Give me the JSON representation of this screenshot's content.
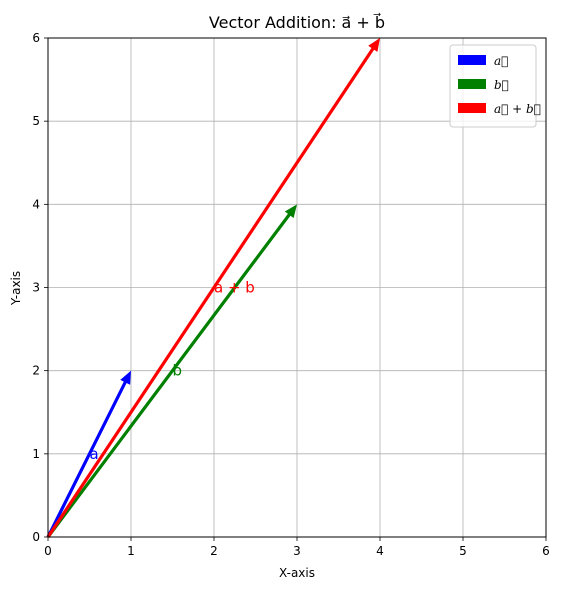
{
  "chart_data": {
    "type": "vector",
    "title": "Vector Addition: a⃗ + b⃗",
    "xlabel": "X-axis",
    "ylabel": "Y-axis",
    "xlim": [
      0,
      6
    ],
    "ylim": [
      0,
      6
    ],
    "xticks": [
      "0",
      "1",
      "2",
      "3",
      "4",
      "5",
      "6"
    ],
    "yticks": [
      "0",
      "1",
      "2",
      "3",
      "4",
      "5",
      "6"
    ],
    "grid": true,
    "legend_position": "top-right",
    "series": [
      {
        "legend": "a⃗",
        "label": "a",
        "color": "#0000ff",
        "origin": [
          0,
          0
        ],
        "vector": [
          1,
          2
        ],
        "label_at": [
          0.5,
          1
        ]
      },
      {
        "legend": "b⃗",
        "label": "b",
        "color": "#008000",
        "origin": [
          0,
          0
        ],
        "vector": [
          3,
          4
        ],
        "label_at": [
          1.5,
          2
        ]
      },
      {
        "legend": "a⃗ + b⃗",
        "label": "a + b",
        "color": "#ff0000",
        "origin": [
          0,
          0
        ],
        "vector": [
          4,
          6
        ],
        "label_at": [
          2,
          3
        ]
      }
    ]
  }
}
